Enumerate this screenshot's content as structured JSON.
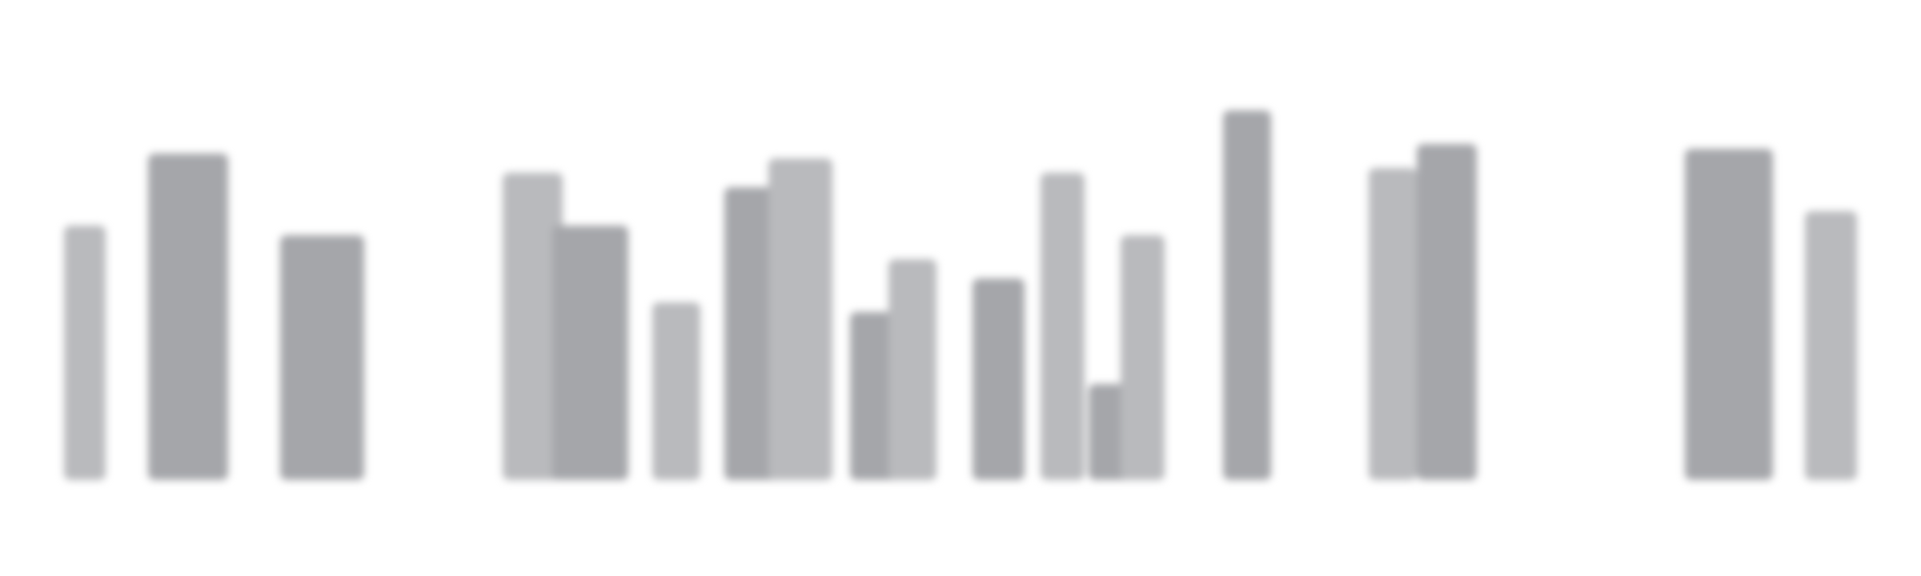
{
  "skeleton": {
    "state": "loading",
    "colors": {
      "dark": "#a5a6aa",
      "light": "#b9babd",
      "background": "#ffffff"
    },
    "bars": [
      {
        "tone": "light",
        "level": 0.53
      },
      {
        "tone": "dark",
        "level": 0.68
      },
      {
        "tone": "dark",
        "level": 0.51
      },
      {
        "tone": "light",
        "level": 0.64
      },
      {
        "tone": "dark",
        "level": 0.53
      },
      {
        "tone": "light",
        "level": 0.37
      },
      {
        "tone": "dark",
        "level": 0.61
      },
      {
        "tone": "light",
        "level": 0.67
      },
      {
        "tone": "dark",
        "level": 0.35
      },
      {
        "tone": "light",
        "level": 0.46
      },
      {
        "tone": "dark",
        "level": 0.42
      },
      {
        "tone": "light",
        "level": 0.64
      },
      {
        "tone": "dark",
        "level": 0.2
      },
      {
        "tone": "light",
        "level": 0.51
      },
      {
        "tone": "dark",
        "level": 0.77
      },
      {
        "tone": "light",
        "level": 0.65
      },
      {
        "tone": "dark",
        "level": 0.7
      },
      {
        "tone": "dark",
        "level": 0.69
      },
      {
        "tone": "light",
        "level": 0.56
      }
    ]
  }
}
